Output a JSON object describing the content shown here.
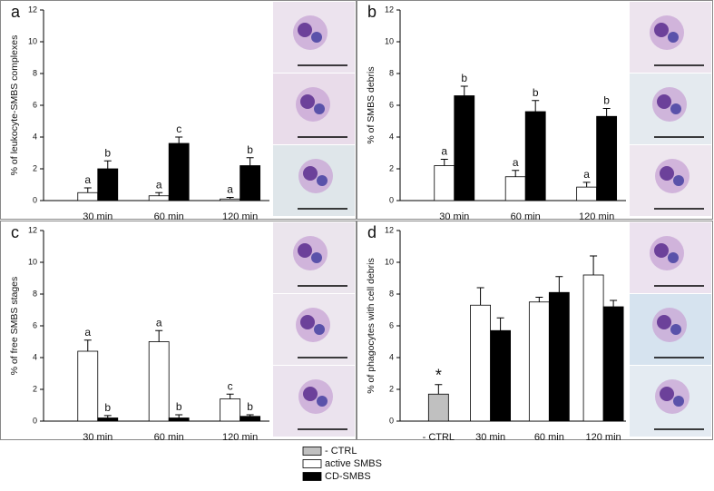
{
  "chart_data": [
    {
      "type": "bar",
      "panel_label": "a",
      "ylabel": "% of leukocyte-SMBS complexes",
      "categories": [
        "30 min",
        "60 min",
        "120 min"
      ],
      "series": [
        {
          "color": "#ffffff",
          "values": [
            0.5,
            0.3,
            0.1
          ],
          "errors": [
            0.3,
            0.2,
            0.1
          ],
          "labels": [
            "a",
            "a",
            "a"
          ]
        },
        {
          "color": "#000000",
          "values": [
            2.0,
            3.6,
            2.2
          ],
          "errors": [
            0.5,
            0.4,
            0.5
          ],
          "labels": [
            "b",
            "c",
            "b"
          ]
        }
      ],
      "ylim": [
        0,
        12
      ],
      "yticks": [
        0,
        2,
        4,
        6,
        8,
        10,
        12
      ]
    },
    {
      "type": "bar",
      "panel_label": "b",
      "ylabel": "% of SMBS debris",
      "categories": [
        "30 min",
        "60 min",
        "120 min"
      ],
      "series": [
        {
          "color": "#ffffff",
          "values": [
            2.2,
            1.5,
            0.85
          ],
          "errors": [
            0.4,
            0.4,
            0.3
          ],
          "labels": [
            "a",
            "a",
            "a"
          ]
        },
        {
          "color": "#000000",
          "values": [
            6.6,
            5.6,
            5.3
          ],
          "errors": [
            0.6,
            0.7,
            0.5
          ],
          "labels": [
            "b",
            "b",
            "b"
          ]
        }
      ],
      "ylim": [
        0,
        12
      ],
      "yticks": [
        0,
        2,
        4,
        6,
        8,
        10,
        12
      ]
    },
    {
      "type": "bar",
      "panel_label": "c",
      "ylabel": "% of free SMBS stages",
      "categories": [
        "30 min",
        "60 min",
        "120 min"
      ],
      "series": [
        {
          "color": "#ffffff",
          "values": [
            4.4,
            5.0,
            1.4
          ],
          "errors": [
            0.7,
            0.7,
            0.3
          ],
          "labels": [
            "a",
            "a",
            "c"
          ]
        },
        {
          "color": "#000000",
          "values": [
            0.2,
            0.2,
            0.3
          ],
          "errors": [
            0.15,
            0.2,
            0.1
          ],
          "labels": [
            "b",
            "b",
            "b"
          ]
        }
      ],
      "ylim": [
        0,
        12
      ],
      "yticks": [
        0,
        2,
        4,
        6,
        8,
        10,
        12
      ]
    },
    {
      "type": "bar",
      "panel_label": "d",
      "ylabel": "% of phagocytes with cell debris",
      "categories": [
        "- CTRL",
        "30 min",
        "60 min",
        "120 min"
      ],
      "series": [
        {
          "name": "- CTRL",
          "color": "#c0c0c0",
          "values": [
            1.7,
            null,
            null,
            null
          ],
          "errors": [
            0.6,
            null,
            null,
            null
          ],
          "labels": [
            "*",
            null,
            null,
            null
          ]
        },
        {
          "name": "active SMBS",
          "color": "#ffffff",
          "values": [
            null,
            7.3,
            7.5,
            9.2
          ],
          "errors": [
            null,
            1.1,
            0.3,
            1.2
          ],
          "labels": [
            null,
            null,
            null,
            null
          ]
        },
        {
          "name": "CD-SMBS",
          "color": "#000000",
          "values": [
            null,
            5.7,
            8.1,
            7.2
          ],
          "errors": [
            null,
            0.8,
            1.0,
            0.4
          ],
          "labels": [
            null,
            null,
            null,
            null
          ]
        }
      ],
      "ylim": [
        0,
        12
      ],
      "yticks": [
        0,
        2,
        4,
        6,
        8,
        10,
        12
      ]
    }
  ]
}
